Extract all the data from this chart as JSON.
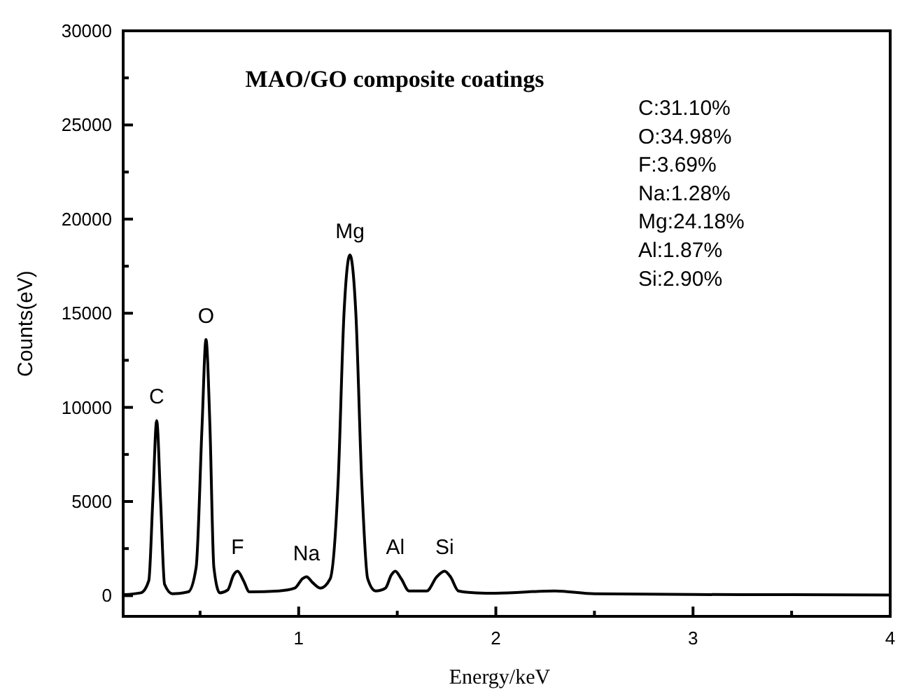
{
  "chart_data": {
    "type": "line",
    "title": "MAO/GO composite coatings",
    "xlabel": "Energy/keV",
    "ylabel": "Counts(eV)",
    "x": [
      0.11,
      0.2,
      0.24,
      0.26,
      0.28,
      0.3,
      0.32,
      0.36,
      0.44,
      0.48,
      0.51,
      0.53,
      0.55,
      0.57,
      0.6,
      0.64,
      0.67,
      0.69,
      0.72,
      0.75,
      0.9,
      0.98,
      1.02,
      1.04,
      1.07,
      1.11,
      1.16,
      1.2,
      1.23,
      1.26,
      1.29,
      1.32,
      1.35,
      1.39,
      1.44,
      1.47,
      1.49,
      1.52,
      1.56,
      1.65,
      1.7,
      1.74,
      1.77,
      1.81,
      1.9,
      2.0,
      2.3,
      2.5,
      3.0,
      3.5,
      4.0
    ],
    "series": [
      {
        "color": "#000000",
        "values": [
          50,
          150,
          800,
          5000,
          9300,
          5000,
          600,
          100,
          200,
          1500,
          9000,
          13600,
          9000,
          1500,
          150,
          300,
          1100,
          1300,
          800,
          200,
          250,
          400,
          900,
          1000,
          700,
          400,
          900,
          6000,
          15000,
          18100,
          15000,
          6000,
          900,
          250,
          400,
          1100,
          1300,
          900,
          250,
          250,
          1000,
          1300,
          1000,
          250,
          150,
          130,
          250,
          100,
          60,
          50,
          30
        ]
      }
    ],
    "xlim": [
      0.11,
      4
    ],
    "xticks": [
      {
        "value": 0.5,
        "label": null
      },
      1,
      {
        "value": 1.5,
        "label": null
      },
      2,
      {
        "value": 2.5,
        "label": null
      },
      3,
      {
        "value": 3.5,
        "label": null
      },
      4
    ],
    "ylim": [
      -1100,
      30000
    ],
    "yticks": [
      0,
      {
        "value": 2500,
        "label": null
      },
      5000,
      {
        "value": 7500,
        "label": null
      },
      10000,
      {
        "value": 12500,
        "label": null
      },
      15000,
      {
        "value": 17500,
        "label": null
      },
      20000,
      {
        "value": 22500,
        "label": null
      },
      25000,
      {
        "value": 27500,
        "label": null
      },
      30000
    ],
    "grid": false,
    "marker": "none",
    "line_style": "solid",
    "annotations": [
      {
        "text": "C",
        "x": 0.28,
        "y": 9300
      },
      {
        "text": "O",
        "x": 0.53,
        "y": 13600
      },
      {
        "text": "F",
        "x": 0.69,
        "y": 1300
      },
      {
        "text": "Na",
        "x": 1.04,
        "y": 1000
      },
      {
        "text": "Mg",
        "x": 1.26,
        "y": 18100
      },
      {
        "text": "Al",
        "x": 1.49,
        "y": 1300
      },
      {
        "text": "Si",
        "x": 1.74,
        "y": 1300
      },
      "C:31.10%",
      "O:34.98%",
      "F:3.69%",
      "Na:1.28%",
      "Mg:24.18%",
      "Al:1.87%",
      "Si:2.90%"
    ]
  }
}
